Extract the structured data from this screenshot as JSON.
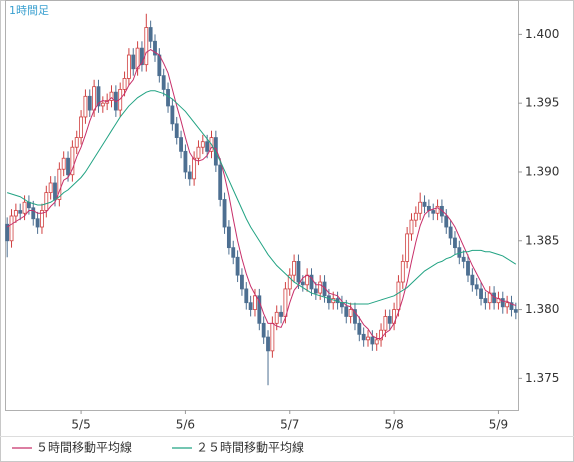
{
  "chart_data": {
    "type": "candlestick",
    "title": "1時間足",
    "categories": [
      null,
      null,
      null,
      null,
      null,
      null,
      null,
      null,
      null,
      null,
      null,
      null,
      null,
      null,
      null,
      null,
      null,
      "5/5",
      null,
      null,
      null,
      null,
      null,
      null,
      null,
      null,
      null,
      null,
      null,
      null,
      null,
      null,
      null,
      null,
      null,
      null,
      null,
      null,
      null,
      null,
      null,
      "5/6",
      null,
      null,
      null,
      null,
      null,
      null,
      null,
      null,
      null,
      null,
      null,
      null,
      null,
      null,
      null,
      null,
      null,
      null,
      null,
      null,
      null,
      null,
      null,
      "5/7",
      null,
      null,
      null,
      null,
      null,
      null,
      null,
      null,
      null,
      null,
      null,
      null,
      null,
      null,
      null,
      null,
      null,
      null,
      null,
      null,
      null,
      null,
      null,
      "5/8",
      null,
      null,
      null,
      null,
      null,
      null,
      null,
      null,
      null,
      null,
      null,
      null,
      null,
      null,
      null,
      null,
      null,
      null,
      null,
      null,
      null,
      null,
      null,
      "5/9",
      null,
      null,
      null,
      null
    ],
    "open": [
      1.3862,
      1.385,
      1.3868,
      1.3872,
      1.387,
      1.3878,
      1.3874,
      1.3866,
      1.386,
      1.3872,
      1.3885,
      1.3892,
      1.388,
      1.3902,
      1.391,
      1.3898,
      1.3918,
      1.3925,
      1.394,
      1.3955,
      1.3945,
      1.3962,
      1.3948,
      1.395,
      1.3952,
      1.3958,
      1.3945,
      1.396,
      1.3968,
      1.3985,
      1.3975,
      1.399,
      1.3978,
      1.4005,
      1.3995,
      1.3985,
      1.397,
      1.396,
      1.3948,
      1.3935,
      1.3925,
      1.3915,
      1.39,
      1.3895,
      1.391,
      1.3918,
      1.3922,
      1.3915,
      1.3925,
      1.3905,
      1.388,
      1.386,
      1.3845,
      1.3838,
      1.3825,
      1.3815,
      1.3805,
      1.38,
      1.381,
      1.379,
      1.378,
      1.377,
      1.379,
      1.3798,
      1.3795,
      1.3815,
      1.3825,
      1.3835,
      1.382,
      1.3818,
      1.3825,
      1.3815,
      1.3812,
      1.382,
      1.381,
      1.3805,
      1.3808,
      1.3805,
      1.3802,
      1.3795,
      1.38,
      1.379,
      1.3782,
      1.3778,
      1.378,
      1.3775,
      1.3778,
      1.3785,
      1.3795,
      1.379,
      1.38,
      1.382,
      1.3835,
      1.3855,
      1.3865,
      1.387,
      1.3878,
      1.3875,
      1.3872,
      1.387,
      1.3875,
      1.3868,
      1.386,
      1.3852,
      1.3845,
      1.3838,
      1.3835,
      1.3825,
      1.3818,
      1.3815,
      1.3808,
      1.3805,
      1.3812,
      1.3805,
      1.3808,
      1.3802,
      1.3805,
      1.38
    ],
    "high": [
      1.3867,
      1.3873,
      1.3877,
      1.3877,
      1.3883,
      1.3883,
      1.3879,
      1.3871,
      1.3877,
      1.389,
      1.3897,
      1.3897,
      1.3907,
      1.3915,
      1.3915,
      1.3923,
      1.393,
      1.3945,
      1.396,
      1.396,
      1.3967,
      1.3967,
      1.3955,
      1.3957,
      1.3963,
      1.3963,
      1.3965,
      1.3973,
      1.399,
      1.399,
      1.3995,
      1.3995,
      1.4015,
      1.401,
      1.4,
      1.399,
      1.3975,
      1.3965,
      1.3953,
      1.394,
      1.393,
      1.392,
      1.3905,
      1.3915,
      1.3923,
      1.3927,
      1.3927,
      1.393,
      1.393,
      1.391,
      1.3885,
      1.3865,
      1.385,
      1.3843,
      1.383,
      1.382,
      1.381,
      1.3815,
      1.3815,
      1.3795,
      1.3785,
      1.3795,
      1.3803,
      1.3803,
      1.382,
      1.383,
      1.384,
      1.384,
      1.3825,
      1.383,
      1.383,
      1.382,
      1.3825,
      1.3825,
      1.3815,
      1.3813,
      1.3813,
      1.381,
      1.3807,
      1.3805,
      1.3805,
      1.3795,
      1.3787,
      1.3785,
      1.3785,
      1.3783,
      1.379,
      1.38,
      1.38,
      1.3805,
      1.3825,
      1.384,
      1.386,
      1.387,
      1.3875,
      1.3885,
      1.3883,
      1.388,
      1.3877,
      1.388,
      1.388,
      1.3873,
      1.3865,
      1.3857,
      1.385,
      1.3843,
      1.384,
      1.383,
      1.3823,
      1.382,
      1.3813,
      1.3817,
      1.3817,
      1.3813,
      1.3813,
      1.381,
      1.381,
      1.3805
    ],
    "low": [
      1.3838,
      1.3845,
      1.3863,
      1.3865,
      1.3865,
      1.3869,
      1.3861,
      1.3855,
      1.3855,
      1.3867,
      1.388,
      1.3875,
      1.3875,
      1.3897,
      1.3893,
      1.3893,
      1.3913,
      1.392,
      1.3935,
      1.394,
      1.394,
      1.3943,
      1.3943,
      1.3945,
      1.3947,
      1.394,
      1.394,
      1.3955,
      1.3963,
      1.397,
      1.397,
      1.3973,
      1.3973,
      1.399,
      1.398,
      1.3965,
      1.3955,
      1.3943,
      1.393,
      1.392,
      1.391,
      1.3895,
      1.389,
      1.389,
      1.3905,
      1.3913,
      1.391,
      1.391,
      1.39,
      1.3875,
      1.3855,
      1.384,
      1.3833,
      1.382,
      1.381,
      1.38,
      1.3795,
      1.3795,
      1.3785,
      1.3775,
      1.3745,
      1.3765,
      1.3785,
      1.379,
      1.379,
      1.381,
      1.382,
      1.3815,
      1.3813,
      1.3813,
      1.381,
      1.3807,
      1.3807,
      1.3805,
      1.38,
      1.38,
      1.38,
      1.3797,
      1.379,
      1.379,
      1.3785,
      1.3777,
      1.3773,
      1.3773,
      1.377,
      1.377,
      1.3773,
      1.378,
      1.3785,
      1.3785,
      1.3795,
      1.3815,
      1.383,
      1.385,
      1.386,
      1.3865,
      1.387,
      1.3867,
      1.3865,
      1.3865,
      1.3863,
      1.3855,
      1.3847,
      1.384,
      1.3833,
      1.383,
      1.382,
      1.3813,
      1.381,
      1.3803,
      1.38,
      1.38,
      1.38,
      1.38,
      1.3797,
      1.3797,
      1.3795,
      1.3793
    ],
    "close": [
      1.385,
      1.3868,
      1.3872,
      1.387,
      1.3878,
      1.3874,
      1.3866,
      1.386,
      1.3872,
      1.3885,
      1.3892,
      1.388,
      1.3902,
      1.391,
      1.3898,
      1.3918,
      1.3925,
      1.394,
      1.3955,
      1.3945,
      1.3962,
      1.3948,
      1.395,
      1.3952,
      1.3958,
      1.3945,
      1.396,
      1.3968,
      1.3985,
      1.3975,
      1.399,
      1.3978,
      1.4005,
      1.3995,
      1.3985,
      1.397,
      1.396,
      1.3948,
      1.3935,
      1.3925,
      1.3915,
      1.39,
      1.3895,
      1.391,
      1.3918,
      1.3922,
      1.3915,
      1.3925,
      1.3905,
      1.388,
      1.386,
      1.3845,
      1.3838,
      1.3825,
      1.3815,
      1.3805,
      1.38,
      1.381,
      1.379,
      1.378,
      1.377,
      1.379,
      1.3798,
      1.3795,
      1.3815,
      1.3825,
      1.3835,
      1.382,
      1.3818,
      1.3825,
      1.3815,
      1.3812,
      1.382,
      1.381,
      1.3805,
      1.3808,
      1.3805,
      1.3802,
      1.3795,
      1.38,
      1.379,
      1.3782,
      1.3778,
      1.378,
      1.3775,
      1.3778,
      1.3785,
      1.3795,
      1.379,
      1.38,
      1.382,
      1.3835,
      1.3855,
      1.3865,
      1.387,
      1.3878,
      1.3875,
      1.3872,
      1.387,
      1.3875,
      1.3868,
      1.386,
      1.3852,
      1.3845,
      1.3838,
      1.3835,
      1.3825,
      1.3818,
      1.3815,
      1.3808,
      1.3805,
      1.3812,
      1.3805,
      1.3808,
      1.3802,
      1.3805,
      1.38,
      1.3798
    ],
    "up_color": "#d04040",
    "down_color": "#4d6f91",
    "series": [
      {
        "name": "５時間移動平均線",
        "color": "#c8306a",
        "values": [
          1.386,
          1.3862,
          1.3864,
          1.3866,
          1.3868,
          1.3872,
          1.3872,
          1.387,
          1.387,
          1.3871,
          1.3875,
          1.3878,
          1.3886,
          1.3894,
          1.3896,
          1.3902,
          1.3911,
          1.3918,
          1.3927,
          1.3937,
          1.3945,
          1.395,
          1.3952,
          1.3951,
          1.3954,
          1.3951,
          1.3953,
          1.3957,
          1.3963,
          1.3967,
          1.3976,
          1.3979,
          1.3987,
          1.3989,
          1.3987,
          1.3985,
          1.3979,
          1.3972,
          1.396,
          1.3948,
          1.3937,
          1.3925,
          1.3914,
          1.3909,
          1.3908,
          1.3909,
          1.3912,
          1.3918,
          1.3917,
          1.3909,
          1.3897,
          1.3883,
          1.3866,
          1.385,
          1.3837,
          1.3826,
          1.3817,
          1.3811,
          1.3806,
          1.3797,
          1.379,
          1.379,
          1.3788,
          1.3787,
          1.3794,
          1.3805,
          1.3814,
          1.3818,
          1.3823,
          1.3825,
          1.3823,
          1.3818,
          1.3818,
          1.3816,
          1.3812,
          1.3811,
          1.381,
          1.3806,
          1.3803,
          1.3802,
          1.3798,
          1.3794,
          1.3789,
          1.3786,
          1.3781,
          1.3779,
          1.3779,
          1.3783,
          1.3785,
          1.379,
          1.3798,
          1.3808,
          1.382,
          1.3835,
          1.3849,
          1.3861,
          1.3869,
          1.3872,
          1.3873,
          1.3874,
          1.3872,
          1.3869,
          1.3865,
          1.386,
          1.3853,
          1.3846,
          1.3839,
          1.3832,
          1.3826,
          1.382,
          1.3814,
          1.3812,
          1.3809,
          1.3808,
          1.3806,
          1.3806,
          1.3804,
          1.3803
        ]
      },
      {
        "name": "２５時間移動平均線",
        "color": "#22a383",
        "values": [
          1.3885,
          1.3884,
          1.3883,
          1.3882,
          1.388,
          1.3878,
          1.3877,
          1.3876,
          1.3876,
          1.3877,
          1.3878,
          1.388,
          1.3882,
          1.3885,
          1.3887,
          1.389,
          1.3893,
          1.3896,
          1.39,
          1.3905,
          1.391,
          1.3915,
          1.392,
          1.3925,
          1.393,
          1.3935,
          1.394,
          1.3944,
          1.3948,
          1.3951,
          1.3954,
          1.3956,
          1.3958,
          1.3959,
          1.3959,
          1.3958,
          1.3957,
          1.3955,
          1.3953,
          1.395,
          1.3947,
          1.3944,
          1.394,
          1.3936,
          1.3932,
          1.3928,
          1.3924,
          1.392,
          1.3914,
          1.3908,
          1.3901,
          1.3894,
          1.3887,
          1.388,
          1.3873,
          1.3866,
          1.386,
          1.3855,
          1.385,
          1.3845,
          1.384,
          1.3836,
          1.3832,
          1.3829,
          1.3826,
          1.3823,
          1.382,
          1.3818,
          1.3816,
          1.3814,
          1.3812,
          1.3811,
          1.381,
          1.3809,
          1.3808,
          1.3807,
          1.3806,
          1.3805,
          1.3805,
          1.3804,
          1.3804,
          1.3804,
          1.3804,
          1.3804,
          1.3805,
          1.3806,
          1.3807,
          1.3808,
          1.3809,
          1.381,
          1.3812,
          1.3814,
          1.3816,
          1.3819,
          1.3822,
          1.3825,
          1.3828,
          1.383,
          1.3832,
          1.3834,
          1.3835,
          1.3837,
          1.3838,
          1.384,
          1.3841,
          1.3842,
          1.3842,
          1.3843,
          1.3843,
          1.3843,
          1.3842,
          1.3842,
          1.3841,
          1.384,
          1.3839,
          1.3837,
          1.3835,
          1.3833
        ]
      }
    ],
    "ylim": [
      1.3727,
      1.4025
    ],
    "yticks": [
      {
        "value": 1.375,
        "label": "1.375"
      },
      {
        "value": 1.38,
        "label": "1.380"
      },
      {
        "value": 1.385,
        "label": "1.385"
      },
      {
        "value": 1.39,
        "label": "1.390"
      },
      {
        "value": 1.395,
        "label": "1.395"
      },
      {
        "value": 1.4,
        "label": "1.400"
      }
    ]
  }
}
